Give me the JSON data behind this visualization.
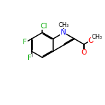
{
  "background_color": "#ffffff",
  "line_color": "#000000",
  "atom_colors": {
    "N": "#0000ff",
    "O": "#ff0000",
    "F": "#00aa00",
    "Cl": "#00aa00",
    "C": "#000000"
  },
  "figsize": [
    1.52,
    1.52
  ],
  "dpi": 100,
  "bond_width": 1.1,
  "font_size": 7.0,
  "xlim": [
    0,
    10
  ],
  "ylim": [
    0,
    10
  ]
}
